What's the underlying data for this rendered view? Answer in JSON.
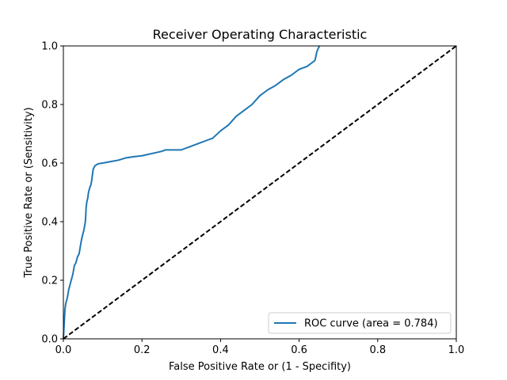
{
  "chart_data": {
    "type": "line",
    "title": "Receiver Operating Characteristic",
    "xlabel": "False Positive Rate or (1 - Specifity)",
    "ylabel": "True Positive Rate or (Sensitivity)",
    "xlim": [
      0,
      1
    ],
    "ylim": [
      0,
      1
    ],
    "xticks": [
      "0.0",
      "0.2",
      "0.4",
      "0.6",
      "0.8",
      "1.0"
    ],
    "yticks": [
      "0.0",
      "0.2",
      "0.4",
      "0.6",
      "0.8",
      "1.0"
    ],
    "grid": false,
    "legend_position": "lower-right",
    "series": [
      {
        "name": "ROC curve (area = 0.784)",
        "color": "#1f77b4",
        "style": "solid",
        "x": [
          0.0,
          0.002,
          0.004,
          0.006,
          0.01,
          0.014,
          0.02,
          0.024,
          0.028,
          0.032,
          0.036,
          0.04,
          0.045,
          0.048,
          0.052,
          0.056,
          0.058,
          0.06,
          0.062,
          0.064,
          0.066,
          0.068,
          0.07,
          0.072,
          0.074,
          0.076,
          0.078,
          0.08,
          0.085,
          0.09,
          0.1,
          0.12,
          0.14,
          0.16,
          0.18,
          0.2,
          0.25,
          0.26,
          0.28,
          0.3,
          0.31,
          0.32,
          0.34,
          0.36,
          0.38,
          0.4,
          0.42,
          0.44,
          0.46,
          0.48,
          0.5,
          0.52,
          0.54,
          0.56,
          0.58,
          0.6,
          0.62,
          0.64,
          0.642,
          0.645,
          0.648,
          0.652
        ],
        "y": [
          0.0,
          0.05,
          0.1,
          0.12,
          0.14,
          0.17,
          0.2,
          0.22,
          0.25,
          0.26,
          0.28,
          0.29,
          0.33,
          0.35,
          0.37,
          0.4,
          0.45,
          0.47,
          0.48,
          0.5,
          0.51,
          0.52,
          0.525,
          0.54,
          0.56,
          0.58,
          0.585,
          0.59,
          0.595,
          0.598,
          0.6,
          0.605,
          0.61,
          0.618,
          0.622,
          0.625,
          0.64,
          0.645,
          0.645,
          0.645,
          0.65,
          0.655,
          0.665,
          0.675,
          0.685,
          0.71,
          0.73,
          0.76,
          0.78,
          0.8,
          0.83,
          0.85,
          0.865,
          0.885,
          0.9,
          0.92,
          0.93,
          0.95,
          0.96,
          0.98,
          0.99,
          1.0
        ]
      },
      {
        "name": "",
        "color": "#000000",
        "style": "dashed",
        "x": [
          0,
          1
        ],
        "y": [
          0,
          1
        ]
      }
    ]
  }
}
